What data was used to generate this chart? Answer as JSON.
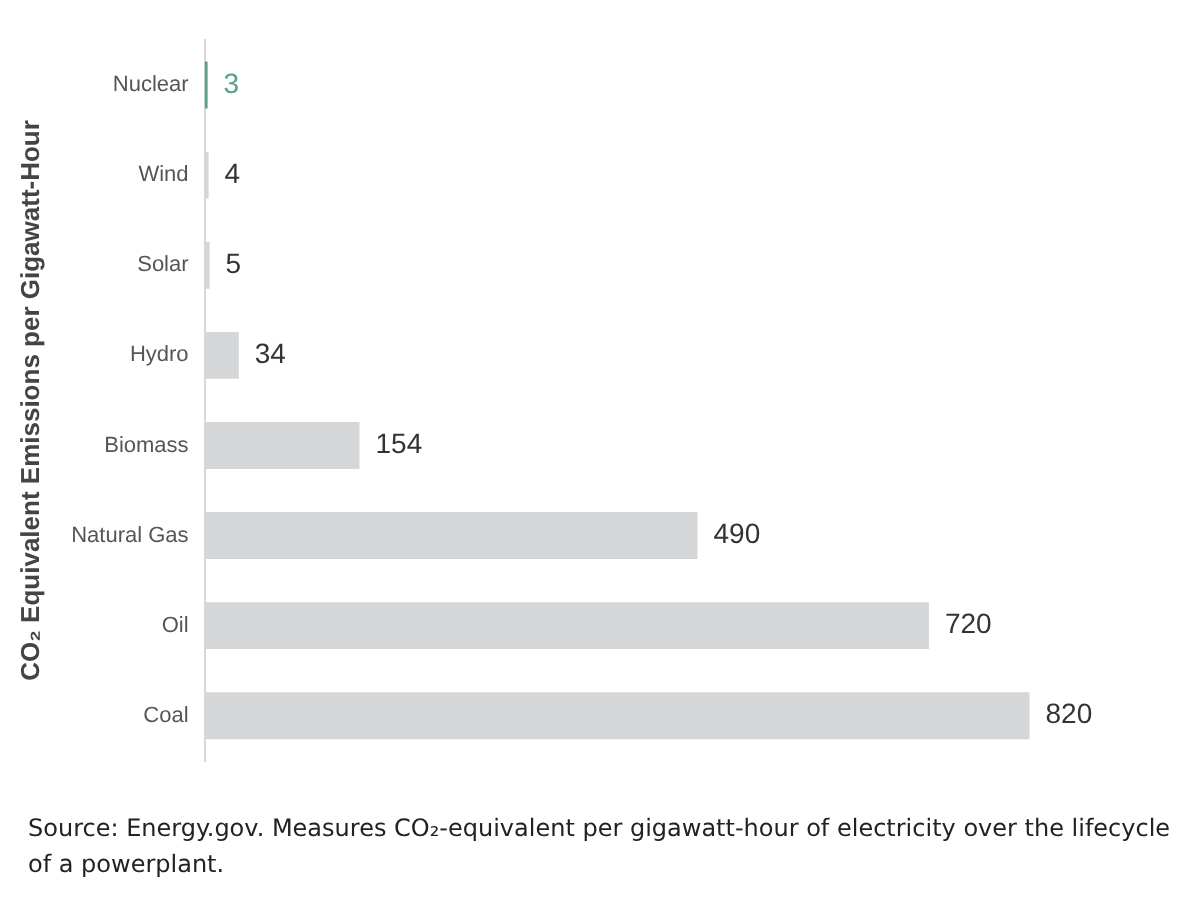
{
  "chart_data": {
    "type": "bar",
    "orientation": "horizontal",
    "ylabel": "CO₂ Equivalent Emissions per Gigawatt-Hour",
    "categories": [
      "Nuclear",
      "Wind",
      "Solar",
      "Hydro",
      "Biomass",
      "Natural Gas",
      "Oil",
      "Coal"
    ],
    "values": [
      3,
      4,
      5,
      34,
      154,
      490,
      720,
      820
    ],
    "colors": [
      "#5a9e8c",
      "#d4d6d8",
      "#d4d6d8",
      "#d4d6d8",
      "#d4d6d8",
      "#d4d6d8",
      "#d4d6d8",
      "#d4d6d8"
    ],
    "data_labels": true,
    "legend": false,
    "annotations": [
      "Source: Energy.gov. Measures CO₂-equivalent per gigawatt-hour of electricity over the lifecycle of a powerplant."
    ]
  }
}
